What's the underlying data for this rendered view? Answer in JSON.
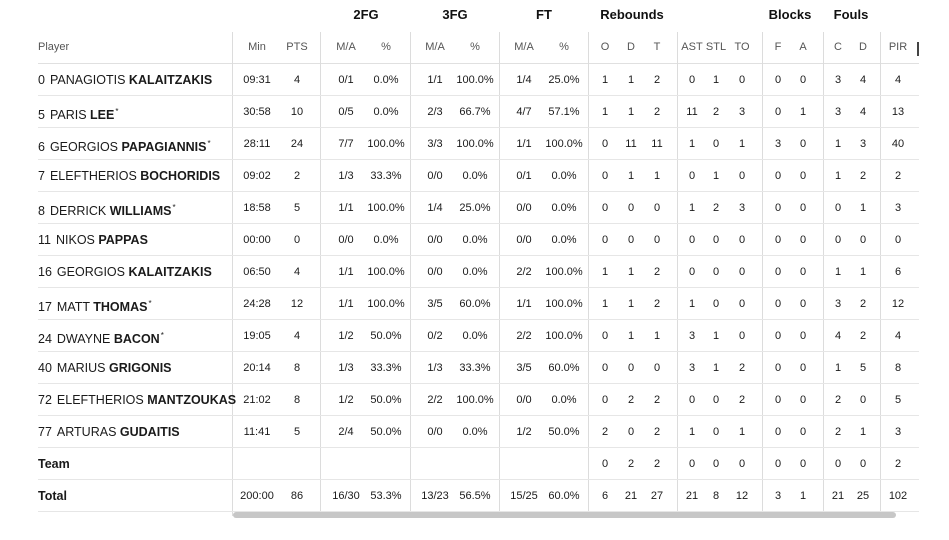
{
  "groups": [
    "2FG",
    "3FG",
    "FT",
    "Rebounds",
    "Blocks",
    "Fouls"
  ],
  "headers": {
    "player": "Player",
    "cols": [
      "Min",
      "PTS",
      "M/A",
      "%",
      "M/A",
      "%",
      "M/A",
      "%",
      "O",
      "D",
      "T",
      "AST",
      "STL",
      "TO",
      "F",
      "A",
      "C",
      "D",
      "PIR"
    ]
  },
  "players": [
    {
      "num": "0",
      "first": "PANAGIOTIS",
      "last": "KALAITZAKIS",
      "starter": false,
      "stats": [
        "09:31",
        "4",
        "0/1",
        "0.0%",
        "1/1",
        "100.0%",
        "1/4",
        "25.0%",
        "1",
        "1",
        "2",
        "0",
        "1",
        "0",
        "0",
        "0",
        "3",
        "4",
        "4"
      ]
    },
    {
      "num": "5",
      "first": "PARIS",
      "last": "LEE",
      "starter": true,
      "stats": [
        "30:58",
        "10",
        "0/5",
        "0.0%",
        "2/3",
        "66.7%",
        "4/7",
        "57.1%",
        "1",
        "1",
        "2",
        "11",
        "2",
        "3",
        "0",
        "1",
        "3",
        "4",
        "13"
      ]
    },
    {
      "num": "6",
      "first": "GEORGIOS",
      "last": "PAPAGIANNIS",
      "starter": true,
      "stats": [
        "28:11",
        "24",
        "7/7",
        "100.0%",
        "3/3",
        "100.0%",
        "1/1",
        "100.0%",
        "0",
        "11",
        "11",
        "1",
        "0",
        "1",
        "3",
        "0",
        "1",
        "3",
        "40"
      ]
    },
    {
      "num": "7",
      "first": "ELEFTHERIOS",
      "last": "BOCHORIDIS",
      "starter": false,
      "stats": [
        "09:02",
        "2",
        "1/3",
        "33.3%",
        "0/0",
        "0.0%",
        "0/1",
        "0.0%",
        "0",
        "1",
        "1",
        "0",
        "1",
        "0",
        "0",
        "0",
        "1",
        "2",
        "2"
      ]
    },
    {
      "num": "8",
      "first": "DERRICK",
      "last": "WILLIAMS",
      "starter": true,
      "stats": [
        "18:58",
        "5",
        "1/1",
        "100.0%",
        "1/4",
        "25.0%",
        "0/0",
        "0.0%",
        "0",
        "0",
        "0",
        "1",
        "2",
        "3",
        "0",
        "0",
        "0",
        "1",
        "3"
      ]
    },
    {
      "num": "11",
      "first": "NIKOS",
      "last": "PAPPAS",
      "starter": false,
      "stats": [
        "00:00",
        "0",
        "0/0",
        "0.0%",
        "0/0",
        "0.0%",
        "0/0",
        "0.0%",
        "0",
        "0",
        "0",
        "0",
        "0",
        "0",
        "0",
        "0",
        "0",
        "0",
        "0"
      ]
    },
    {
      "num": "16",
      "first": "GEORGIOS",
      "last": "KALAITZAKIS",
      "starter": false,
      "stats": [
        "06:50",
        "4",
        "1/1",
        "100.0%",
        "0/0",
        "0.0%",
        "2/2",
        "100.0%",
        "1",
        "1",
        "2",
        "0",
        "0",
        "0",
        "0",
        "0",
        "1",
        "1",
        "6"
      ]
    },
    {
      "num": "17",
      "first": "MATT",
      "last": "THOMAS",
      "starter": true,
      "stats": [
        "24:28",
        "12",
        "1/1",
        "100.0%",
        "3/5",
        "60.0%",
        "1/1",
        "100.0%",
        "1",
        "1",
        "2",
        "1",
        "0",
        "0",
        "0",
        "0",
        "3",
        "2",
        "12"
      ]
    },
    {
      "num": "24",
      "first": "DWAYNE",
      "last": "BACON",
      "starter": true,
      "stats": [
        "19:05",
        "4",
        "1/2",
        "50.0%",
        "0/2",
        "0.0%",
        "2/2",
        "100.0%",
        "0",
        "1",
        "1",
        "3",
        "1",
        "0",
        "0",
        "0",
        "4",
        "2",
        "4"
      ]
    },
    {
      "num": "40",
      "first": "MARIUS",
      "last": "GRIGONIS",
      "starter": false,
      "stats": [
        "20:14",
        "8",
        "1/3",
        "33.3%",
        "1/3",
        "33.3%",
        "3/5",
        "60.0%",
        "0",
        "0",
        "0",
        "3",
        "1",
        "2",
        "0",
        "0",
        "1",
        "5",
        "8"
      ]
    },
    {
      "num": "72",
      "first": "ELEFTHERIOS",
      "last": "MANTZOUKAS",
      "starter": false,
      "stats": [
        "21:02",
        "8",
        "1/2",
        "50.0%",
        "2/2",
        "100.0%",
        "0/0",
        "0.0%",
        "0",
        "2",
        "2",
        "0",
        "0",
        "2",
        "0",
        "0",
        "2",
        "0",
        "5"
      ]
    },
    {
      "num": "77",
      "first": "ARTURAS",
      "last": "GUDAITIS",
      "starter": false,
      "stats": [
        "11:41",
        "5",
        "2/4",
        "50.0%",
        "0/0",
        "0.0%",
        "1/2",
        "50.0%",
        "2",
        "0",
        "2",
        "1",
        "0",
        "1",
        "0",
        "0",
        "2",
        "1",
        "3"
      ]
    }
  ],
  "team": {
    "label": "Team",
    "stats": [
      "",
      "",
      "",
      "",
      "",
      "",
      "",
      "",
      "0",
      "2",
      "2",
      "0",
      "0",
      "0",
      "0",
      "0",
      "0",
      "0",
      "2"
    ]
  },
  "total": {
    "label": "Total",
    "stats": [
      "200:00",
      "86",
      "16/30",
      "53.3%",
      "13/23",
      "56.5%",
      "15/25",
      "60.0%",
      "6",
      "21",
      "27",
      "21",
      "8",
      "12",
      "3",
      "1",
      "21",
      "25",
      "102"
    ]
  }
}
